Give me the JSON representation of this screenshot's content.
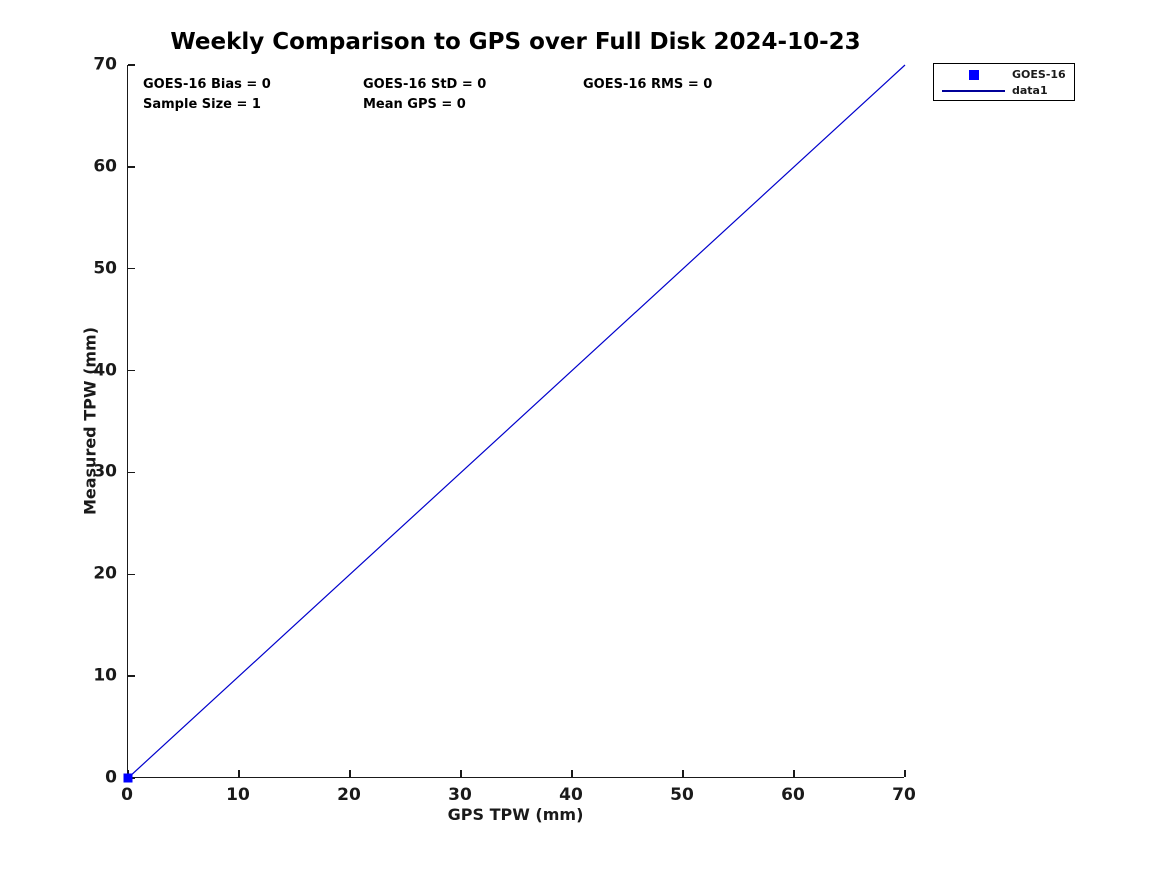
{
  "chart_data": {
    "type": "line",
    "title": "Weekly Comparison to GPS over Full Disk 2024-10-23",
    "xlabel": "GPS TPW (mm)",
    "ylabel": "Measured TPW (mm)",
    "xlim": [
      0,
      70
    ],
    "ylim": [
      0,
      70
    ],
    "xticks": [
      0,
      10,
      20,
      30,
      40,
      50,
      60,
      70
    ],
    "yticks": [
      0,
      10,
      20,
      30,
      40,
      50,
      60,
      70
    ],
    "grid": false,
    "tick_direction": "in",
    "axis_color": "#1a1a1a",
    "annotations": [
      {
        "text": "GOES-16 Bias = 0"
      },
      {
        "text": "GOES-16 StD = 0"
      },
      {
        "text": "GOES-16 RMS = 0"
      },
      {
        "text": "Sample Size = 1"
      },
      {
        "text": "Mean GPS = 0"
      }
    ],
    "series": [
      {
        "name": "GOES-16",
        "type": "scatter",
        "marker": "square",
        "color": "#0000ff",
        "marker_size": 9,
        "points": [
          [
            0,
            0
          ]
        ]
      },
      {
        "name": "data1",
        "type": "line",
        "color": "#0000cc",
        "width": 1.2,
        "points": [
          [
            0,
            0
          ],
          [
            70,
            70
          ]
        ]
      }
    ],
    "legend": {
      "position": "northeast-outside",
      "entries": [
        {
          "label": "GOES-16",
          "type": "marker",
          "color": "#0000ff"
        },
        {
          "label": "data1",
          "type": "line",
          "color": "#000099"
        }
      ]
    }
  }
}
